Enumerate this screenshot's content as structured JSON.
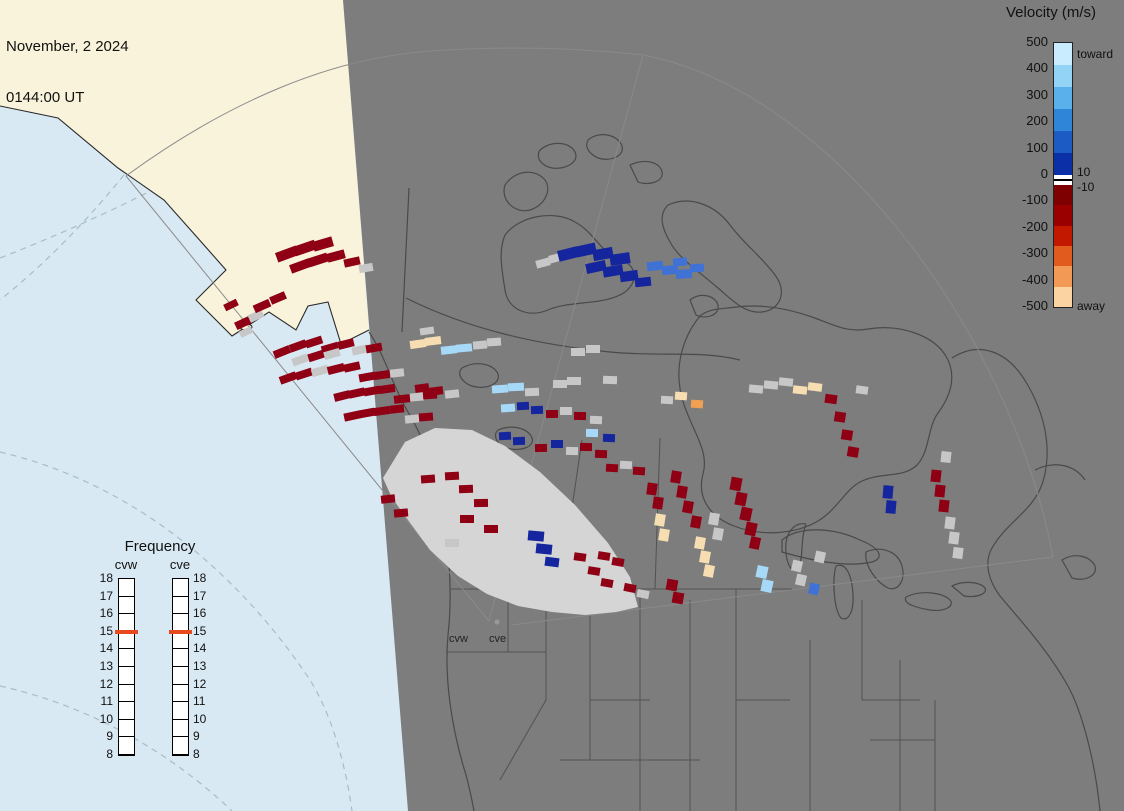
{
  "header": {
    "date_line": "November, 2 2024",
    "time_line": "0144:00 UT"
  },
  "velocity_legend": {
    "title": "Velocity (m/s)",
    "toward_label": "toward",
    "away_label": "away",
    "pos_threshold": "10",
    "neg_threshold": "-10",
    "ticks": [
      "500",
      "400",
      "300",
      "200",
      "100",
      "0",
      "-100",
      "-200",
      "-300",
      "-400",
      "-500"
    ],
    "toward_colors": [
      "#c9ecff",
      "#93d4f6",
      "#59b0ea",
      "#2f86d8",
      "#1c5ac4",
      "#0b2fa6"
    ],
    "away_colors": [
      "#7f0000",
      "#9b0000",
      "#c21800",
      "#e15a1e",
      "#f29a55",
      "#fbd3a2"
    ]
  },
  "frequency_legend": {
    "title": "Frequency",
    "columns": [
      "cvw",
      "cve"
    ],
    "ticks": [
      "18",
      "17",
      "16",
      "15",
      "14",
      "13",
      "12",
      "11",
      "10",
      "9",
      "8"
    ],
    "marker_tick": "15",
    "marker_color": "#e8491d"
  },
  "map": {
    "site_labels": [
      "cvw",
      "cve"
    ],
    "colors": {
      "ocean": "#d9e9f3",
      "dayside_land": "#f8f3da",
      "map_gray": "#7d7d7d",
      "outline": "#4a4a4a",
      "fan_fill": "#d5d5d5"
    },
    "palette": {
      "K": "#8f0014",
      "B": "#15259d",
      "m": "#3f72d4",
      "b": "#a6d9f7",
      "c": "#f7ddb2",
      "o": "#f0a050",
      "g": "#c7c7c7"
    },
    "cells": [
      [
        231,
        305,
        14,
        7,
        -26,
        "K"
      ],
      [
        243,
        323,
        16,
        8,
        -25,
        "K"
      ],
      [
        256,
        316,
        15,
        8,
        -25,
        "g"
      ],
      [
        262,
        306,
        17,
        8,
        -24,
        "K"
      ],
      [
        278,
        298,
        16,
        8,
        -23,
        "K"
      ],
      [
        287,
        254,
        22,
        10,
        -20,
        "K"
      ],
      [
        305,
        248,
        22,
        10,
        -19,
        "K"
      ],
      [
        323,
        244,
        20,
        10,
        -16,
        "K"
      ],
      [
        300,
        266,
        20,
        9,
        -20,
        "K"
      ],
      [
        318,
        260,
        20,
        9,
        -18,
        "K"
      ],
      [
        336,
        256,
        18,
        9,
        -15,
        "K"
      ],
      [
        352,
        262,
        16,
        8,
        -12,
        "K"
      ],
      [
        366,
        268,
        14,
        8,
        -10,
        "g"
      ],
      [
        246,
        332,
        13,
        7,
        -25,
        "g"
      ],
      [
        282,
        352,
        17,
        8,
        -22,
        "K"
      ],
      [
        298,
        346,
        17,
        8,
        -20,
        "K"
      ],
      [
        314,
        342,
        17,
        8,
        -18,
        "K"
      ],
      [
        330,
        348,
        17,
        8,
        -16,
        "K"
      ],
      [
        346,
        344,
        16,
        8,
        -14,
        "K"
      ],
      [
        300,
        360,
        16,
        8,
        -20,
        "g"
      ],
      [
        316,
        356,
        16,
        8,
        -18,
        "K"
      ],
      [
        332,
        354,
        16,
        8,
        -16,
        "g"
      ],
      [
        360,
        350,
        16,
        8,
        -12,
        "g"
      ],
      [
        374,
        348,
        16,
        8,
        -10,
        "K"
      ],
      [
        288,
        378,
        17,
        8,
        -20,
        "K"
      ],
      [
        304,
        374,
        17,
        8,
        -18,
        "K"
      ],
      [
        320,
        371,
        17,
        8,
        -16,
        "g"
      ],
      [
        336,
        369,
        17,
        8,
        -14,
        "K"
      ],
      [
        352,
        367,
        16,
        8,
        -12,
        "K"
      ],
      [
        367,
        377,
        16,
        8,
        -10,
        "K"
      ],
      [
        382,
        375,
        16,
        8,
        -8,
        "K"
      ],
      [
        397,
        373,
        14,
        8,
        -6,
        "g"
      ],
      [
        342,
        396,
        16,
        8,
        -14,
        "K"
      ],
      [
        357,
        393,
        16,
        8,
        -12,
        "K"
      ],
      [
        372,
        391,
        16,
        8,
        -10,
        "K"
      ],
      [
        387,
        389,
        16,
        8,
        -8,
        "K"
      ],
      [
        402,
        399,
        16,
        8,
        -6,
        "K"
      ],
      [
        417,
        397,
        14,
        8,
        -5,
        "g"
      ],
      [
        430,
        395,
        14,
        8,
        -4,
        "K"
      ],
      [
        352,
        416,
        16,
        8,
        -12,
        "K"
      ],
      [
        367,
        413,
        16,
        8,
        -10,
        "K"
      ],
      [
        382,
        411,
        16,
        8,
        -8,
        "K"
      ],
      [
        397,
        409,
        14,
        8,
        -6,
        "K"
      ],
      [
        412,
        419,
        14,
        8,
        -5,
        "g"
      ],
      [
        426,
        417,
        14,
        8,
        -4,
        "K"
      ],
      [
        543,
        263,
        14,
        8,
        -15,
        "g"
      ],
      [
        556,
        258,
        14,
        8,
        -15,
        "g"
      ],
      [
        568,
        254,
        20,
        11,
        -14,
        "B"
      ],
      [
        586,
        250,
        20,
        11,
        -12,
        "B"
      ],
      [
        603,
        254,
        20,
        11,
        -10,
        "B"
      ],
      [
        620,
        259,
        20,
        11,
        -8,
        "B"
      ],
      [
        596,
        267,
        20,
        10,
        -12,
        "B"
      ],
      [
        613,
        271,
        20,
        10,
        -10,
        "B"
      ],
      [
        629,
        276,
        18,
        10,
        -8,
        "B"
      ],
      [
        643,
        282,
        16,
        9,
        -6,
        "B"
      ],
      [
        655,
        266,
        16,
        9,
        -6,
        "m"
      ],
      [
        670,
        270,
        16,
        9,
        -5,
        "m"
      ],
      [
        684,
        274,
        16,
        9,
        -4,
        "m"
      ],
      [
        697,
        268,
        14,
        8,
        -3,
        "m"
      ],
      [
        680,
        262,
        14,
        8,
        -5,
        "m"
      ],
      [
        418,
        344,
        16,
        8,
        -8,
        "c"
      ],
      [
        433,
        341,
        16,
        8,
        -7,
        "c"
      ],
      [
        449,
        350,
        16,
        8,
        -6,
        "b"
      ],
      [
        464,
        348,
        16,
        8,
        -5,
        "b"
      ],
      [
        427,
        331,
        14,
        7,
        -8,
        "g"
      ],
      [
        480,
        345,
        14,
        8,
        -5,
        "g"
      ],
      [
        494,
        342,
        14,
        8,
        -4,
        "g"
      ],
      [
        578,
        352,
        14,
        8,
        0,
        "g"
      ],
      [
        593,
        349,
        14,
        8,
        0,
        "g"
      ],
      [
        422,
        388,
        14,
        8,
        -8,
        "K"
      ],
      [
        436,
        391,
        14,
        8,
        -7,
        "K"
      ],
      [
        452,
        394,
        14,
        8,
        -6,
        "g"
      ],
      [
        500,
        389,
        16,
        8,
        -4,
        "b"
      ],
      [
        516,
        387,
        16,
        8,
        -3,
        "b"
      ],
      [
        532,
        392,
        14,
        8,
        -2,
        "g"
      ],
      [
        560,
        384,
        14,
        8,
        0,
        "g"
      ],
      [
        574,
        381,
        14,
        8,
        0,
        "g"
      ],
      [
        610,
        380,
        14,
        8,
        2,
        "g"
      ],
      [
        508,
        408,
        14,
        8,
        -4,
        "b"
      ],
      [
        523,
        406,
        12,
        8,
        -3,
        "B"
      ],
      [
        537,
        410,
        12,
        8,
        -2,
        "B"
      ],
      [
        552,
        414,
        12,
        8,
        -1,
        "K"
      ],
      [
        566,
        411,
        12,
        8,
        0,
        "g"
      ],
      [
        580,
        416,
        12,
        8,
        1,
        "K"
      ],
      [
        596,
        420,
        12,
        8,
        2,
        "g"
      ],
      [
        505,
        436,
        12,
        8,
        -3,
        "B"
      ],
      [
        519,
        441,
        12,
        8,
        -2,
        "B"
      ],
      [
        541,
        448,
        12,
        8,
        -1,
        "K"
      ],
      [
        557,
        444,
        12,
        8,
        0,
        "B"
      ],
      [
        572,
        451,
        12,
        8,
        1,
        "g"
      ],
      [
        586,
        447,
        12,
        8,
        1,
        "K"
      ],
      [
        601,
        454,
        12,
        8,
        2,
        "K"
      ],
      [
        612,
        468,
        12,
        8,
        3,
        "K"
      ],
      [
        626,
        465,
        12,
        8,
        3,
        "g"
      ],
      [
        639,
        471,
        12,
        8,
        4,
        "K"
      ],
      [
        592,
        433,
        12,
        8,
        1,
        "b"
      ],
      [
        609,
        438,
        12,
        8,
        2,
        "B"
      ],
      [
        388,
        499,
        14,
        8,
        -6,
        "K"
      ],
      [
        401,
        513,
        14,
        8,
        -5,
        "K"
      ],
      [
        428,
        479,
        14,
        8,
        -4,
        "K"
      ],
      [
        452,
        476,
        14,
        8,
        -3,
        "K"
      ],
      [
        466,
        489,
        14,
        8,
        -2,
        "K"
      ],
      [
        481,
        503,
        14,
        8,
        -1,
        "K"
      ],
      [
        467,
        519,
        14,
        8,
        0,
        "K"
      ],
      [
        491,
        529,
        14,
        8,
        0,
        "K"
      ],
      [
        452,
        543,
        14,
        8,
        0,
        "g"
      ],
      [
        536,
        536,
        16,
        10,
        5,
        "B"
      ],
      [
        544,
        549,
        16,
        10,
        6,
        "B"
      ],
      [
        552,
        562,
        14,
        9,
        7,
        "B"
      ],
      [
        580,
        557,
        12,
        8,
        8,
        "K"
      ],
      [
        594,
        571,
        12,
        8,
        9,
        "K"
      ],
      [
        607,
        583,
        12,
        8,
        10,
        "K"
      ],
      [
        604,
        556,
        12,
        8,
        9,
        "K"
      ],
      [
        618,
        562,
        12,
        8,
        10,
        "K"
      ],
      [
        630,
        588,
        12,
        8,
        11,
        "K"
      ],
      [
        643,
        594,
        12,
        8,
        11,
        "g"
      ],
      [
        652,
        489,
        10,
        12,
        8,
        "K"
      ],
      [
        658,
        503,
        10,
        12,
        8,
        "K"
      ],
      [
        676,
        477,
        10,
        12,
        9,
        "K"
      ],
      [
        682,
        492,
        10,
        12,
        9,
        "K"
      ],
      [
        688,
        507,
        10,
        12,
        10,
        "K"
      ],
      [
        696,
        522,
        10,
        12,
        10,
        "K"
      ],
      [
        660,
        520,
        10,
        12,
        9,
        "c"
      ],
      [
        664,
        535,
        10,
        12,
        9,
        "c"
      ],
      [
        700,
        543,
        10,
        12,
        10,
        "c"
      ],
      [
        705,
        557,
        10,
        12,
        10,
        "c"
      ],
      [
        709,
        571,
        10,
        12,
        11,
        "c"
      ],
      [
        714,
        519,
        10,
        12,
        10,
        "g"
      ],
      [
        718,
        534,
        10,
        12,
        10,
        "g"
      ],
      [
        736,
        484,
        11,
        13,
        11,
        "K"
      ],
      [
        741,
        499,
        11,
        13,
        11,
        "K"
      ],
      [
        746,
        514,
        11,
        13,
        12,
        "K"
      ],
      [
        751,
        529,
        11,
        13,
        12,
        "K"
      ],
      [
        755,
        543,
        10,
        12,
        12,
        "K"
      ],
      [
        762,
        572,
        11,
        12,
        12,
        "b"
      ],
      [
        767,
        586,
        11,
        12,
        12,
        "b"
      ],
      [
        797,
        566,
        10,
        11,
        13,
        "g"
      ],
      [
        801,
        580,
        10,
        11,
        13,
        "g"
      ],
      [
        814,
        589,
        10,
        11,
        13,
        "m"
      ],
      [
        820,
        557,
        10,
        11,
        13,
        "g"
      ],
      [
        672,
        585,
        11,
        11,
        10,
        "K"
      ],
      [
        678,
        598,
        11,
        11,
        10,
        "K"
      ],
      [
        756,
        389,
        14,
        8,
        5,
        "g"
      ],
      [
        771,
        385,
        14,
        8,
        5,
        "g"
      ],
      [
        786,
        382,
        14,
        8,
        6,
        "g"
      ],
      [
        800,
        390,
        14,
        8,
        6,
        "c"
      ],
      [
        815,
        387,
        14,
        8,
        7,
        "c"
      ],
      [
        681,
        396,
        12,
        8,
        4,
        "c"
      ],
      [
        697,
        404,
        12,
        8,
        4,
        "o"
      ],
      [
        667,
        400,
        12,
        8,
        3,
        "g"
      ],
      [
        831,
        399,
        12,
        9,
        8,
        "K"
      ],
      [
        840,
        417,
        11,
        10,
        9,
        "K"
      ],
      [
        847,
        435,
        11,
        10,
        9,
        "K"
      ],
      [
        853,
        452,
        11,
        10,
        10,
        "K"
      ],
      [
        862,
        390,
        12,
        8,
        8,
        "g"
      ],
      [
        888,
        492,
        10,
        13,
        5,
        "B"
      ],
      [
        891,
        507,
        10,
        13,
        5,
        "B"
      ],
      [
        936,
        476,
        10,
        12,
        6,
        "K"
      ],
      [
        940,
        491,
        10,
        12,
        6,
        "K"
      ],
      [
        944,
        506,
        10,
        12,
        6,
        "K"
      ],
      [
        950,
        523,
        10,
        12,
        7,
        "g"
      ],
      [
        954,
        538,
        10,
        12,
        7,
        "g"
      ],
      [
        946,
        457,
        10,
        11,
        6,
        "g"
      ],
      [
        958,
        553,
        10,
        11,
        7,
        "g"
      ]
    ]
  }
}
